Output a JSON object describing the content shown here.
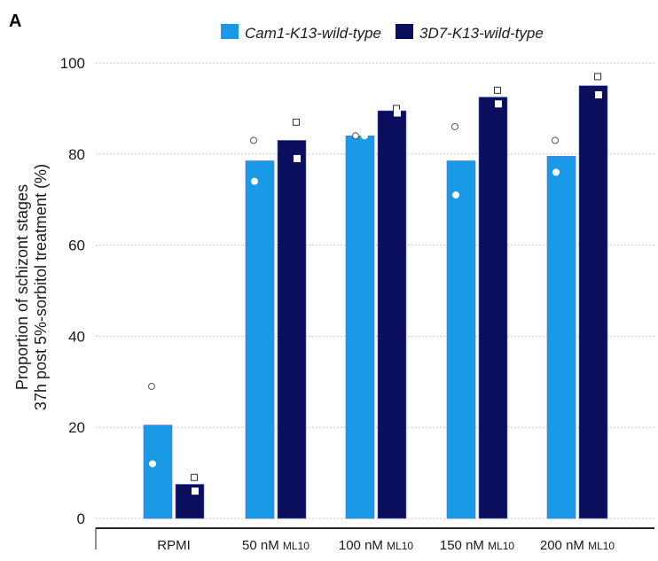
{
  "panel_label": "A",
  "chart_data": {
    "type": "bar",
    "title": "",
    "xlabel": "",
    "ylabel_line1": "Proportion of schizont stages",
    "ylabel_line2": "37h post 5%-sorbitol treatment (%)",
    "ylim": [
      0,
      100
    ],
    "yticks": [
      0,
      20,
      40,
      60,
      80,
      100
    ],
    "grid": true,
    "legend_position": "top",
    "categories": [
      {
        "main": "RPMI",
        "sub": ""
      },
      {
        "main": "50 nM ",
        "sub": "ML10"
      },
      {
        "main": "100 nM ",
        "sub": "ML10"
      },
      {
        "main": "150 nM ",
        "sub": "ML10"
      },
      {
        "main": "200 nM ",
        "sub": "ML10"
      }
    ],
    "series": [
      {
        "name": "Cam1-K13-wild-type",
        "color": "#1a9ae6",
        "marker": "circle",
        "values": [
          20.5,
          78.5,
          84,
          78.5,
          79.5
        ],
        "replicates": [
          [
            29,
            12
          ],
          [
            83,
            74
          ],
          [
            84,
            84
          ],
          [
            86,
            71
          ],
          [
            83,
            76
          ]
        ]
      },
      {
        "name": "3D7-K13-wild-type",
        "color": "#0b0e5c",
        "marker": "square",
        "values": [
          7.5,
          83,
          89.5,
          92.5,
          95
        ],
        "replicates": [
          [
            9,
            6
          ],
          [
            87,
            79
          ],
          [
            90,
            89
          ],
          [
            94,
            91
          ],
          [
            97,
            93
          ]
        ]
      }
    ]
  }
}
